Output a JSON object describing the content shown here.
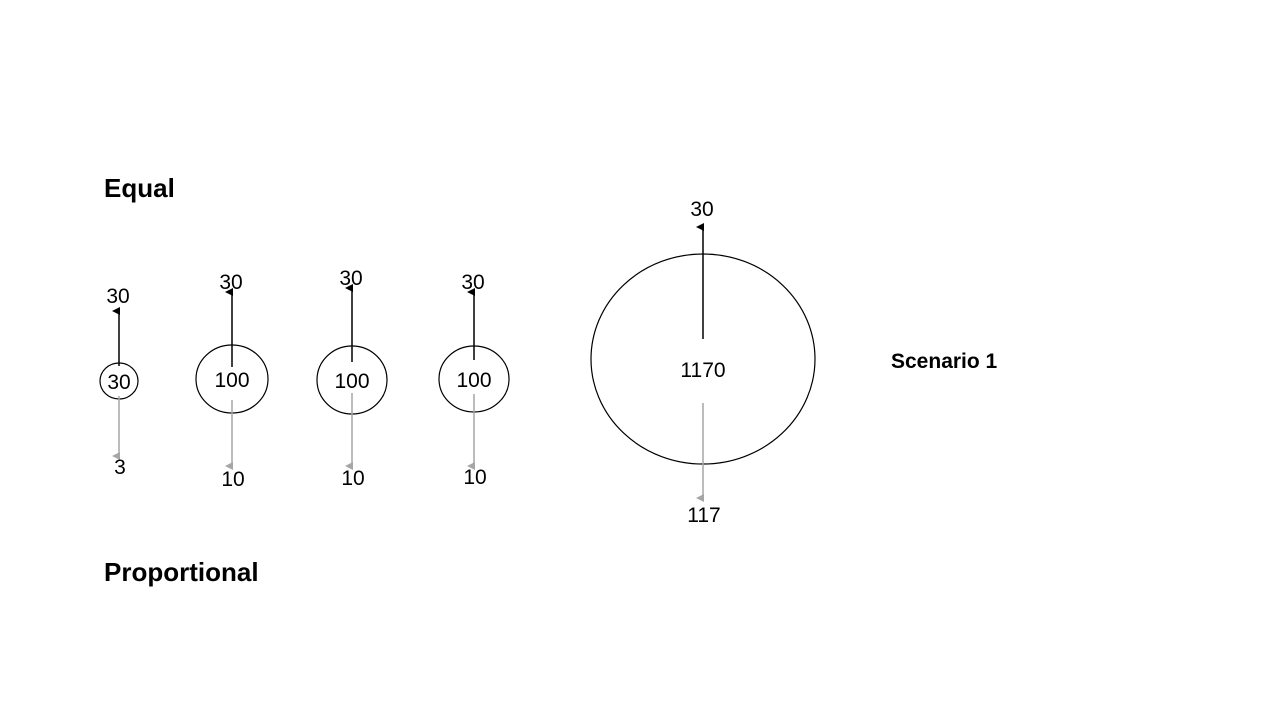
{
  "headings": {
    "equal": "Equal",
    "proportional": "Proportional",
    "scenario": "Scenario 1"
  },
  "nodes": [
    {
      "value": "30",
      "top": "30",
      "bottom": "3"
    },
    {
      "value": "100",
      "top": "30",
      "bottom": "10"
    },
    {
      "value": "100",
      "top": "30",
      "bottom": "10"
    },
    {
      "value": "100",
      "top": "30",
      "bottom": "10"
    },
    {
      "value": "1170",
      "top": "30",
      "bottom": "117"
    }
  ],
  "colors": {
    "top_arrow": "#000000",
    "bottom_arrow": "#a6a6a6",
    "circle_stroke": "#000000",
    "text": "#000000"
  }
}
